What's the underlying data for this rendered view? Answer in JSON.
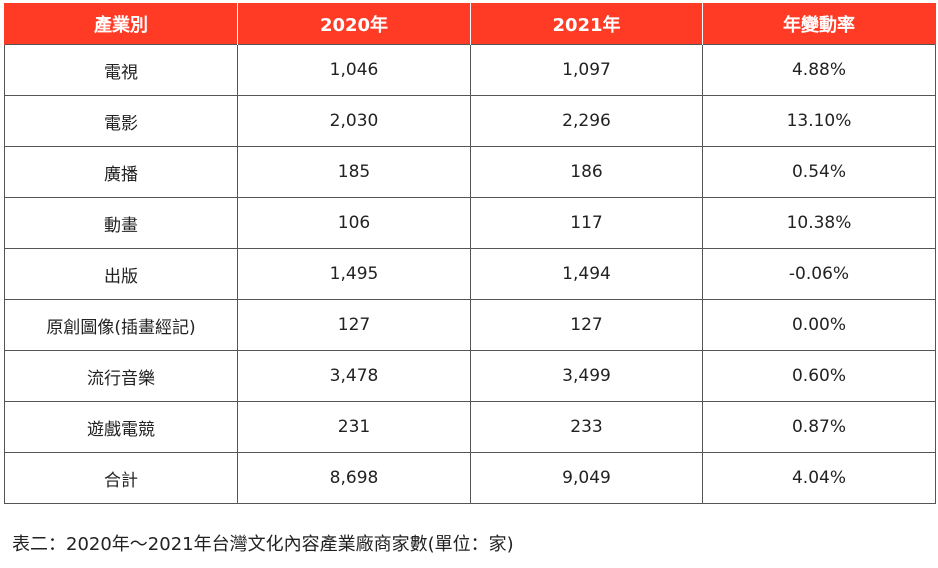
{
  "table": {
    "headers": [
      "產業別",
      "2020年",
      "2021年",
      "年變動率"
    ],
    "rows": [
      [
        "電視",
        "1,046",
        "1,097",
        "4.88%"
      ],
      [
        "電影",
        "2,030",
        "2,296",
        "13.10%"
      ],
      [
        "廣播",
        "185",
        "186",
        "0.54%"
      ],
      [
        "動畫",
        "106",
        "117",
        "10.38%"
      ],
      [
        "出版",
        "1,495",
        "1,494",
        "-0.06%"
      ],
      [
        "原創圖像(插畫經記)",
        "127",
        "127",
        "0.00%"
      ],
      [
        "流行音樂",
        "3,478",
        "3,499",
        "0.60%"
      ],
      [
        "遊戲電競",
        "231",
        "233",
        "0.87%"
      ],
      [
        "合計",
        "8,698",
        "9,049",
        "4.04%"
      ]
    ]
  },
  "caption": "表二：2020年～2021年台灣文化內容產業廠商家數(單位：家)",
  "colors": {
    "header_bg": "#ff3b26",
    "header_text": "#ffffff",
    "border": "#555555"
  }
}
